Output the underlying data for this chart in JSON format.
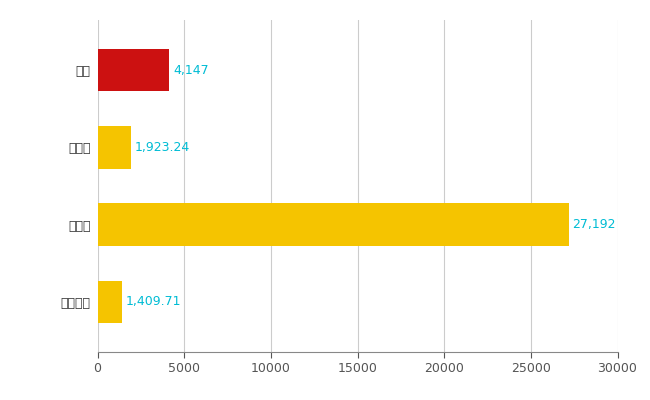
{
  "categories": [
    "西区",
    "県平均",
    "県最大",
    "全国平均"
  ],
  "values": [
    4147,
    1923.24,
    27192,
    1409.71
  ],
  "labels": [
    "4,147",
    "1,923.24",
    "27,192",
    "1,409.71"
  ],
  "colors": [
    "#cc1111",
    "#f5c400",
    "#f5c400",
    "#f5c400"
  ],
  "xlim": [
    0,
    30000
  ],
  "xticks": [
    0,
    5000,
    10000,
    15000,
    20000,
    25000,
    30000
  ],
  "xtick_labels": [
    "0",
    "5000",
    "10000",
    "15000",
    "20000",
    "25000",
    "30000"
  ],
  "background_color": "#ffffff",
  "grid_color": "#cccccc",
  "bar_height": 0.55,
  "label_fontsize": 9,
  "tick_fontsize": 9,
  "label_color": "#00bcd4",
  "ytick_color": "#333333"
}
